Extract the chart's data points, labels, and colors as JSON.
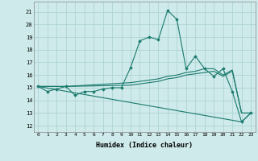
{
  "xlabel": "Humidex (Indice chaleur)",
  "ylabel": "",
  "bg_color": "#ceeaea",
  "line_color": "#1a7a6e",
  "grid_color": "#aed4d4",
  "xlim": [
    -0.5,
    23.5
  ],
  "ylim": [
    11.5,
    21.8
  ],
  "yticks": [
    12,
    13,
    14,
    15,
    16,
    17,
    18,
    19,
    20,
    21
  ],
  "xticks": [
    0,
    1,
    2,
    3,
    4,
    5,
    6,
    7,
    8,
    9,
    10,
    11,
    12,
    13,
    14,
    15,
    16,
    17,
    18,
    19,
    20,
    21,
    22,
    23
  ],
  "series": [
    {
      "x": [
        0,
        1,
        2,
        3,
        4,
        5,
        6,
        7,
        8,
        9,
        10,
        11,
        12,
        13,
        14,
        15,
        16,
        17,
        18,
        19,
        20,
        21,
        22,
        23
      ],
      "y": [
        15.1,
        14.7,
        14.9,
        15.1,
        14.4,
        14.7,
        14.7,
        14.9,
        15.0,
        15.0,
        16.6,
        18.7,
        19.0,
        18.8,
        21.1,
        20.4,
        16.5,
        17.5,
        16.5,
        15.9,
        16.5,
        14.7,
        12.3,
        13.0
      ],
      "markers": true
    },
    {
      "x": [
        0,
        3,
        10,
        11,
        12,
        13,
        14,
        15,
        16,
        17,
        18,
        19,
        20,
        21,
        22,
        23
      ],
      "y": [
        15.1,
        15.1,
        15.4,
        15.5,
        15.6,
        15.7,
        15.9,
        16.0,
        16.2,
        16.3,
        16.5,
        16.5,
        16.0,
        16.4,
        13.0,
        13.0
      ],
      "markers": false
    },
    {
      "x": [
        0,
        3,
        10,
        11,
        12,
        13,
        14,
        15,
        16,
        17,
        18,
        19,
        20,
        21,
        22,
        23
      ],
      "y": [
        15.1,
        15.1,
        15.2,
        15.3,
        15.4,
        15.5,
        15.7,
        15.8,
        16.0,
        16.1,
        16.2,
        16.3,
        15.9,
        16.3,
        13.0,
        13.0
      ],
      "markers": false
    },
    {
      "x": [
        0,
        22,
        23
      ],
      "y": [
        15.1,
        12.3,
        13.0
      ],
      "markers": false
    }
  ]
}
